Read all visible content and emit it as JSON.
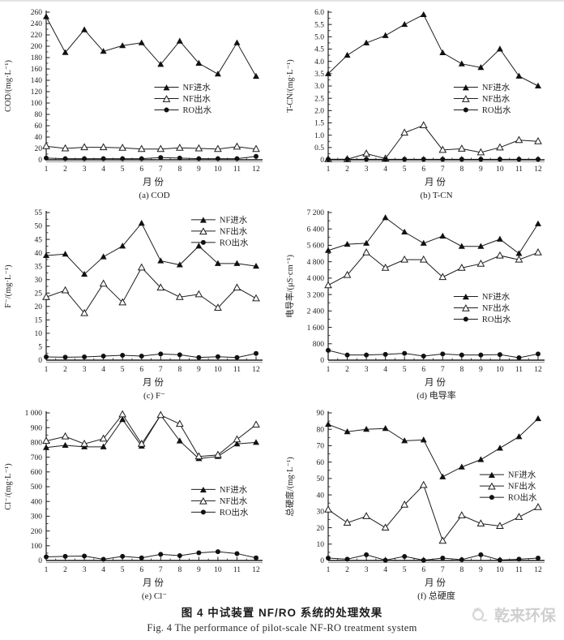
{
  "figure_caption": {
    "zh": "图 4  中试装置 NF/RO 系统的处理效果",
    "en": "Fig. 4   The performance of pilot-scale NF-RO treatment system"
  },
  "watermark": {
    "text": "乾来环保",
    "color": "#cfcfcf"
  },
  "colors": {
    "line": "#1d1d1d",
    "marker_fill": "#111111",
    "marker_open_fill": "#ffffff"
  },
  "legend": {
    "entries": [
      {
        "label": "NF进水",
        "marker": "triangle-filled",
        "name": "nf-influent"
      },
      {
        "label": "NF出水",
        "marker": "triangle-open",
        "name": "nf-effluent"
      },
      {
        "label": "RO出水",
        "marker": "circle-filled",
        "name": "ro-effluent"
      }
    ]
  },
  "chart_data": [
    {
      "id": "a",
      "type": "line",
      "caption": "(a) COD",
      "xlabel": "月份",
      "ylabel": "COD/(mg·L⁻¹)",
      "x": [
        1,
        2,
        3,
        4,
        5,
        6,
        7,
        8,
        9,
        10,
        11,
        12
      ],
      "ylim": [
        0,
        260
      ],
      "ytick_step": 20,
      "ytick_labels": [
        "0",
        "20",
        "40",
        "60",
        "80",
        "100",
        "120",
        "140",
        "160",
        "180",
        "200",
        "220",
        "240",
        "260"
      ],
      "grid": false,
      "legend_pos": {
        "x": 0.5,
        "y": 0.47
      },
      "series": [
        {
          "name": "NF进水",
          "marker": "triangle-filled",
          "values": [
            252,
            189,
            229,
            191,
            201,
            206,
            168,
            209,
            170,
            151,
            206,
            147
          ]
        },
        {
          "name": "NF出水",
          "marker": "triangle-open",
          "values": [
            24,
            20,
            22,
            22,
            21,
            19,
            19,
            21,
            20,
            19,
            23,
            19
          ]
        },
        {
          "name": "RO出水",
          "marker": "circle-filled",
          "values": [
            3,
            2,
            2,
            2,
            2,
            2,
            4,
            3,
            2,
            2,
            2,
            6
          ]
        }
      ]
    },
    {
      "id": "b",
      "type": "line",
      "caption": "(b) T-CN",
      "xlabel": "月份",
      "ylabel": "T-CN/(mg·L⁻¹)",
      "x": [
        1,
        2,
        3,
        4,
        5,
        6,
        7,
        8,
        9,
        10,
        11,
        12
      ],
      "ylim": [
        0,
        6
      ],
      "ytick_step": 0.5,
      "ytick_labels": [
        "0",
        "0.5",
        "1.0",
        "1.5",
        "2.0",
        "2.5",
        "3.0",
        "3.5",
        "4.0",
        "4.5",
        "5.0",
        "5.5",
        "6.0"
      ],
      "grid": false,
      "legend_pos": {
        "x": 0.58,
        "y": 0.47
      },
      "series": [
        {
          "name": "NF进水",
          "marker": "triangle-filled",
          "values": [
            3.5,
            4.25,
            4.75,
            5.05,
            5.5,
            5.9,
            4.35,
            3.9,
            3.75,
            4.5,
            3.4,
            3.0
          ]
        },
        {
          "name": "NF出水",
          "marker": "triangle-open",
          "values": [
            0.02,
            0.02,
            0.25,
            0.05,
            1.1,
            1.4,
            0.4,
            0.45,
            0.3,
            0.5,
            0.8,
            0.75
          ]
        },
        {
          "name": "RO出水",
          "marker": "circle-filled",
          "values": [
            0.02,
            0.02,
            0.02,
            0.02,
            0.02,
            0.02,
            0.02,
            0.02,
            0.02,
            0.02,
            0.02,
            0.02
          ]
        }
      ]
    },
    {
      "id": "c",
      "type": "line",
      "caption": "(c) F⁻",
      "xlabel": "月份",
      "ylabel": "F⁻/(mg·L⁻¹)",
      "x": [
        1,
        2,
        3,
        4,
        5,
        6,
        7,
        8,
        9,
        10,
        11,
        12
      ],
      "ylim": [
        0,
        55
      ],
      "ytick_step": 5,
      "ytick_labels": [
        "0",
        "5",
        "10",
        "15",
        "20",
        "25",
        "30",
        "35",
        "40",
        "45",
        "50",
        "55"
      ],
      "grid": false,
      "legend_pos": {
        "x": 0.67,
        "y": 0.01
      },
      "series": [
        {
          "name": "NF进水",
          "marker": "triangle-filled",
          "values": [
            39,
            39.5,
            32,
            38.5,
            42.5,
            51,
            37,
            35.5,
            42.5,
            36,
            36,
            35
          ]
        },
        {
          "name": "NF出水",
          "marker": "triangle-open",
          "values": [
            23.5,
            26,
            17.5,
            28.5,
            21.5,
            34.5,
            27,
            23.5,
            24.5,
            19.5,
            27,
            23
          ]
        },
        {
          "name": "RO出水",
          "marker": "circle-filled",
          "values": [
            1.2,
            1.1,
            1.2,
            1.5,
            1.8,
            1.5,
            2.3,
            2.0,
            1.0,
            1.3,
            1.0,
            2.5
          ]
        }
      ]
    },
    {
      "id": "d",
      "type": "line",
      "caption": "(d) 电导率",
      "xlabel": "月份",
      "ylabel": "电导率/(μS·cm⁻¹)",
      "x": [
        1,
        2,
        3,
        4,
        5,
        6,
        7,
        8,
        9,
        10,
        11,
        12
      ],
      "ylim": [
        0,
        7200
      ],
      "ytick_step": 800,
      "ytick_labels": [
        "0",
        "800",
        "1 600",
        "2 400",
        "3 200",
        "4 000",
        "4 800",
        "5 600",
        "6 400",
        "7 200"
      ],
      "grid": false,
      "legend_pos": {
        "x": 0.58,
        "y": 0.53
      },
      "series": [
        {
          "name": "NF进水",
          "marker": "triangle-filled",
          "values": [
            5350,
            5650,
            5700,
            6950,
            6250,
            5700,
            6050,
            5550,
            5550,
            5900,
            5200,
            6650
          ]
        },
        {
          "name": "NF出水",
          "marker": "triangle-open",
          "values": [
            3650,
            4150,
            5250,
            4500,
            4900,
            4900,
            4050,
            4500,
            4700,
            5100,
            4900,
            5250
          ]
        },
        {
          "name": "RO出水",
          "marker": "circle-filled",
          "values": [
            480,
            250,
            250,
            280,
            330,
            200,
            300,
            250,
            250,
            270,
            120,
            300
          ]
        }
      ]
    },
    {
      "id": "e",
      "type": "line",
      "caption": "(e) Cl⁻",
      "xlabel": "月份",
      "ylabel": "Cl⁻/(mg·L⁻¹)",
      "x": [
        1,
        2,
        3,
        4,
        5,
        6,
        7,
        8,
        9,
        10,
        11,
        12
      ],
      "ylim": [
        0,
        1000
      ],
      "ytick_step": 100,
      "ytick_labels": [
        "0",
        "100",
        "200",
        "300",
        "400",
        "500",
        "600",
        "700",
        "800",
        "900",
        "1 000"
      ],
      "grid": false,
      "legend_pos": {
        "x": 0.67,
        "y": 0.48
      },
      "series": [
        {
          "name": "NF进水",
          "marker": "triangle-filled",
          "values": [
            765,
            780,
            770,
            770,
            955,
            775,
            985,
            810,
            690,
            705,
            790,
            800
          ]
        },
        {
          "name": "NF出水",
          "marker": "triangle-open",
          "values": [
            810,
            840,
            790,
            825,
            990,
            790,
            985,
            925,
            705,
            715,
            820,
            920
          ]
        },
        {
          "name": "RO出水",
          "marker": "circle-filled",
          "values": [
            25,
            28,
            30,
            8,
            28,
            18,
            42,
            33,
            52,
            60,
            47,
            18
          ]
        }
      ]
    },
    {
      "id": "f",
      "type": "line",
      "caption": "(f) 总硬度",
      "xlabel": "月份",
      "ylabel": "总硬度/(mg·L⁻¹)",
      "x": [
        1,
        2,
        3,
        4,
        5,
        6,
        7,
        8,
        9,
        10,
        11,
        12
      ],
      "ylim": [
        0,
        90
      ],
      "ytick_step": 10,
      "ytick_labels": [
        "0",
        "10",
        "20",
        "30",
        "40",
        "50",
        "60",
        "70",
        "80",
        "90"
      ],
      "grid": false,
      "legend_pos": {
        "x": 0.7,
        "y": 0.38
      },
      "series": [
        {
          "name": "NF进水",
          "marker": "triangle-filled",
          "values": [
            83,
            78.5,
            80,
            80.5,
            73,
            73.5,
            51,
            57,
            61.5,
            68.5,
            75.5,
            86.5
          ]
        },
        {
          "name": "NF出水",
          "marker": "triangle-open",
          "values": [
            31,
            23,
            27,
            20,
            34,
            46,
            12,
            27.5,
            22.5,
            21,
            26.5,
            32.5
          ]
        },
        {
          "name": "RO出水",
          "marker": "circle-filled",
          "values": [
            1.5,
            0.8,
            3.5,
            0.2,
            2.5,
            0.2,
            1.5,
            0.5,
            3.5,
            0.3,
            0.8,
            1.5
          ]
        }
      ]
    }
  ]
}
